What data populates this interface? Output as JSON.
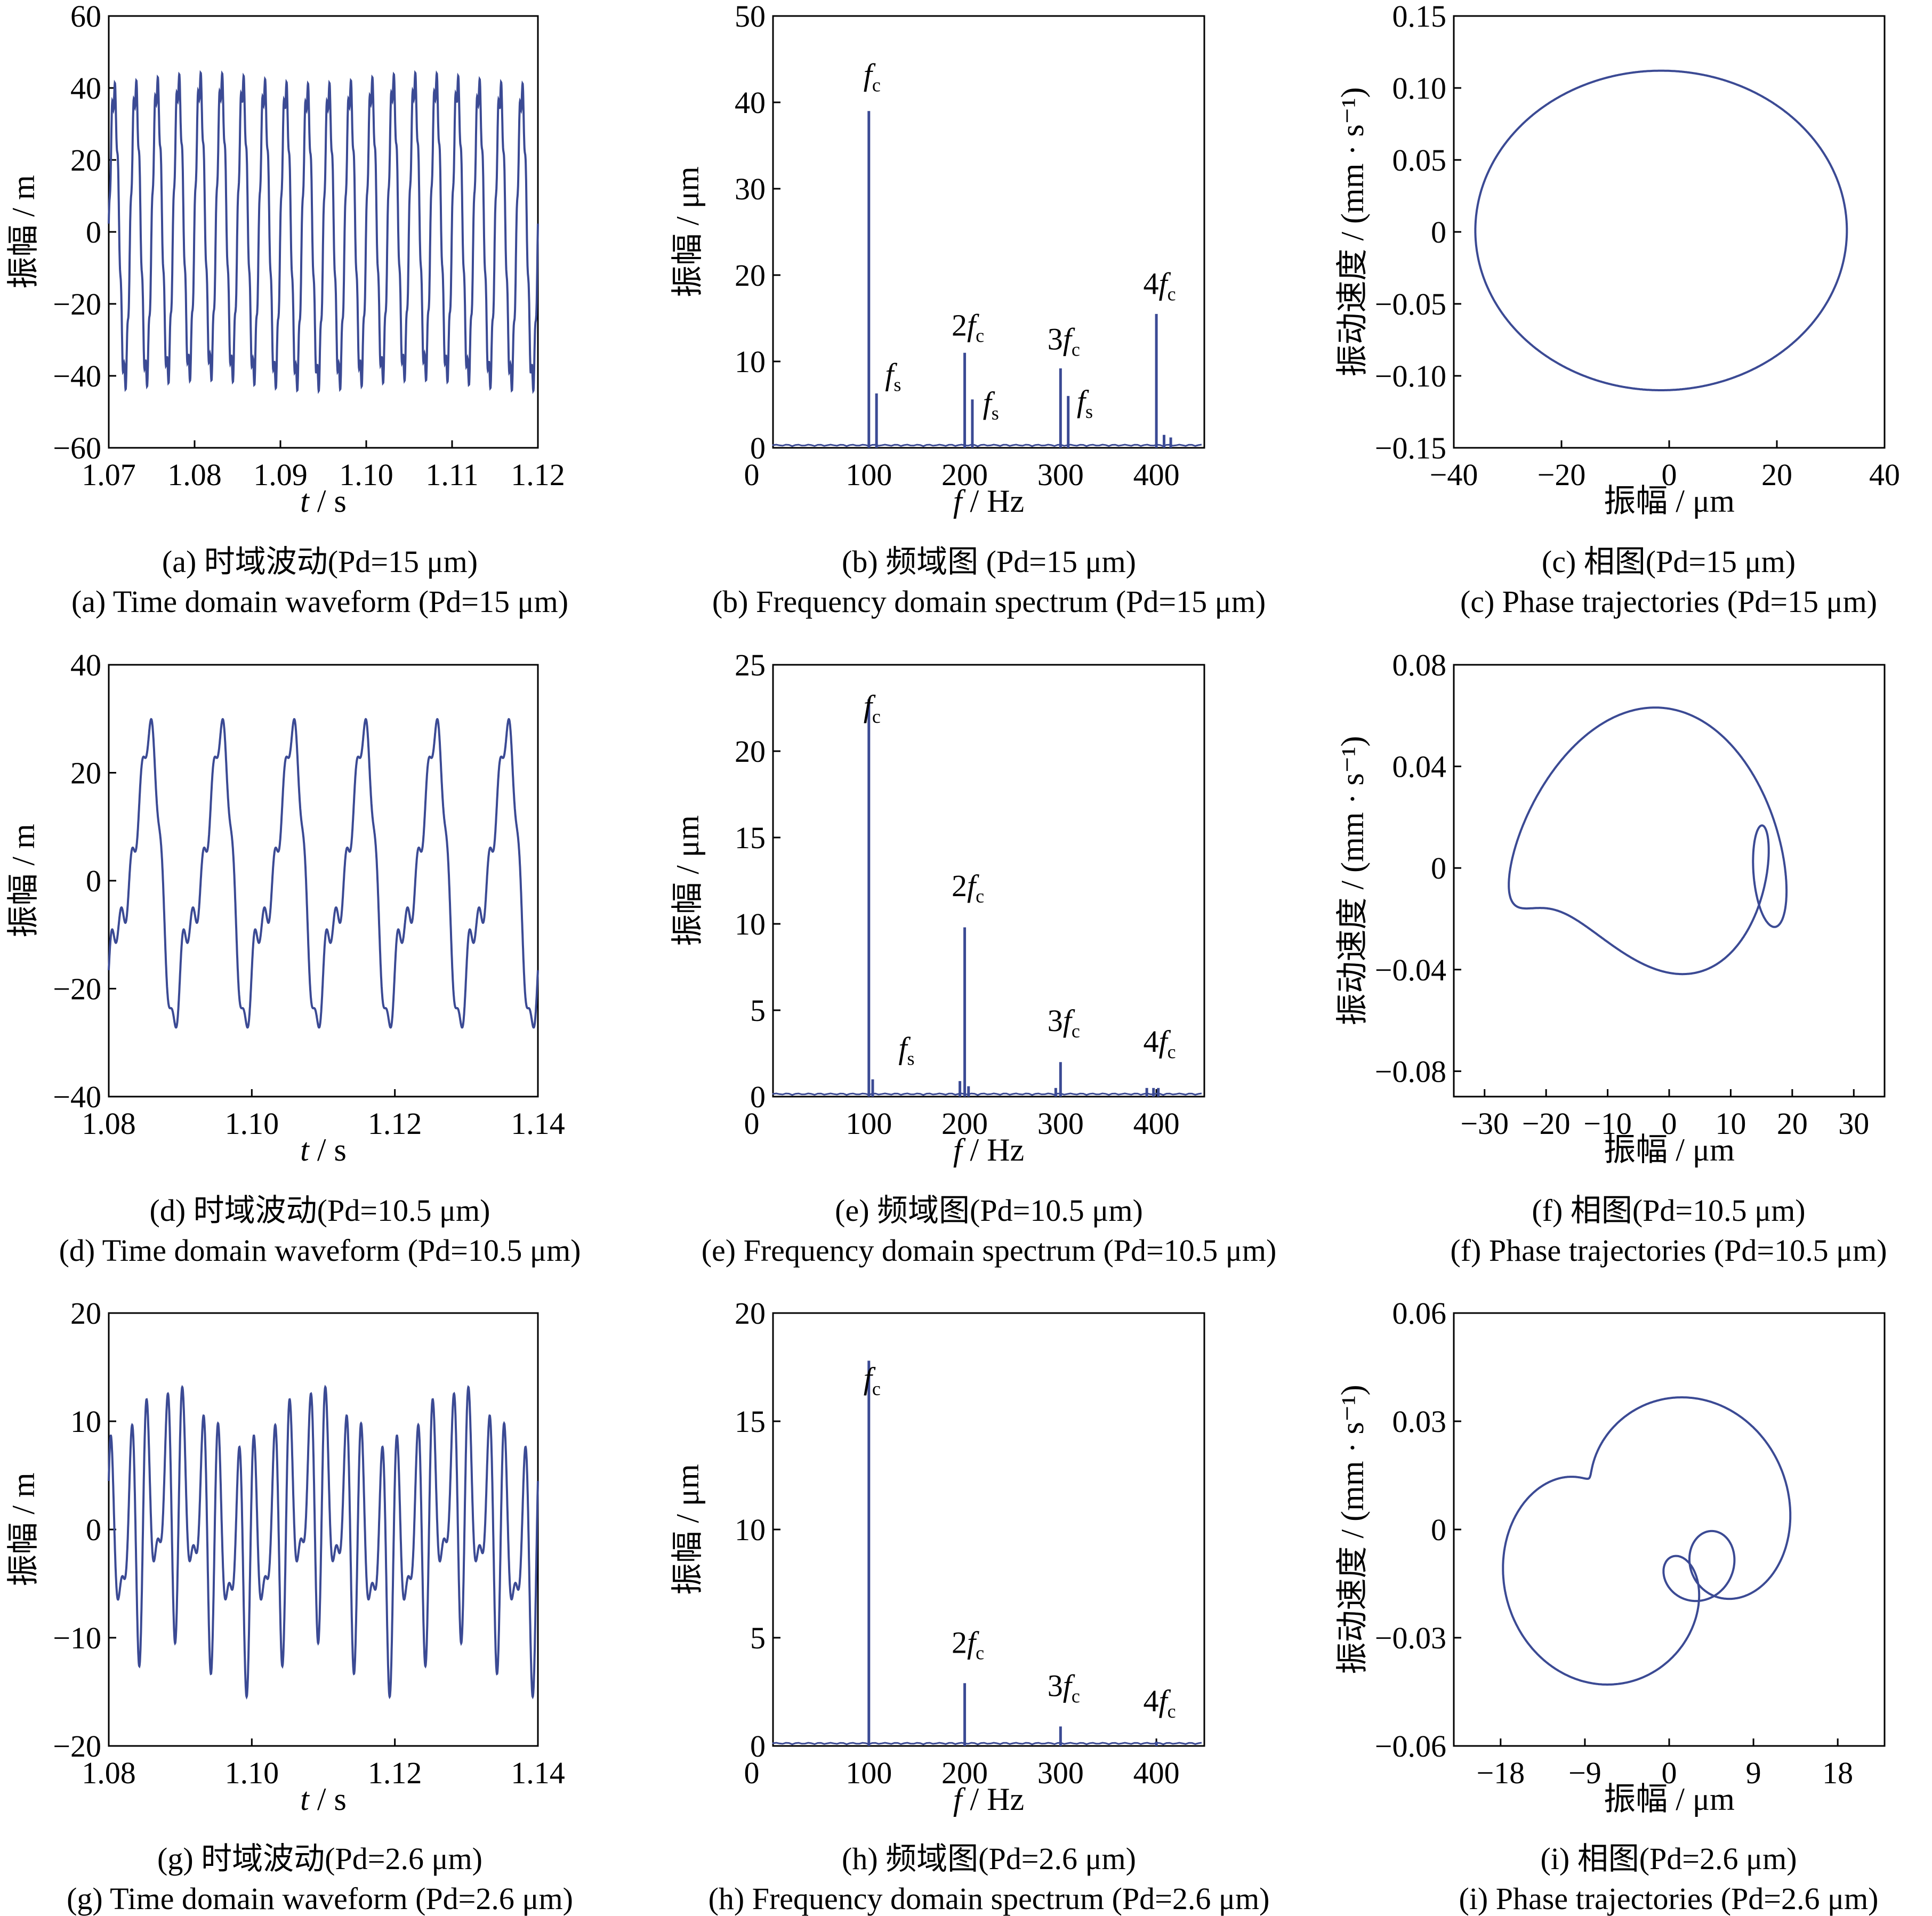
{
  "style": {
    "line_color": "#3b4a94"
  },
  "chart_data": [
    {
      "id": "a",
      "type": "line",
      "xlabel": "t / s",
      "ylabel": "振幅 / m",
      "xlim": [
        1.07,
        1.12
      ],
      "ylim": [
        -60,
        60
      ],
      "xticks": [
        "1.07",
        "1.08",
        "1.09",
        "1.10",
        "1.11",
        "1.12"
      ],
      "yticks": [
        "−60",
        "−40",
        "−20",
        "0",
        "20",
        "40",
        "60"
      ],
      "waveform": {
        "components": [
          {
            "freq": 400,
            "amp": 40,
            "phase": 0
          },
          {
            "freq": 2800,
            "amp": 4,
            "phase": 1.2
          }
        ],
        "drift": 1.5
      },
      "caption_cn": "(a)  时域波动(Pd=15 μm)",
      "caption_en": "(a)  Time domain waveform (Pd=15 μm)"
    },
    {
      "id": "b",
      "type": "bar",
      "xlabel": "f / Hz",
      "ylabel": "振幅 / μm",
      "xlim": [
        0,
        450
      ],
      "ylim": [
        0,
        50
      ],
      "xticks": [
        "100",
        "200",
        "300",
        "400"
      ],
      "yticks": [
        "0",
        "10",
        "20",
        "30",
        "40",
        "50"
      ],
      "peaks": [
        {
          "x": 100,
          "y": 39
        },
        {
          "x": 108,
          "y": 6.3
        },
        {
          "x": 200,
          "y": 11
        },
        {
          "x": 208,
          "y": 5.6
        },
        {
          "x": 300,
          "y": 9.2
        },
        {
          "x": 308,
          "y": 6
        },
        {
          "x": 400,
          "y": 15.5
        },
        {
          "x": 408,
          "y": 1.5
        },
        {
          "x": 415,
          "y": 1.2
        }
      ],
      "labels": [
        {
          "text": "f",
          "sub": "c",
          "x": 100,
          "y": 42
        },
        {
          "text": "f",
          "sub": "s",
          "x": 122,
          "y": 7.3
        },
        {
          "text": "2f",
          "sub": "c",
          "x": 200,
          "y": 13
        },
        {
          "text": "f",
          "sub": "s",
          "x": 224,
          "y": 4
        },
        {
          "text": "3f",
          "sub": "c",
          "x": 300,
          "y": 11.4
        },
        {
          "text": "f",
          "sub": "s",
          "x": 322,
          "y": 4.2
        },
        {
          "text": "4f",
          "sub": "c",
          "x": 400,
          "y": 17.8
        }
      ],
      "caption_cn": "(b)  频域图 (Pd=15 μm)",
      "caption_en": "(b)  Frequency domain spectrum (Pd=15 μm)"
    },
    {
      "id": "c",
      "type": "line",
      "xlabel": "振幅 / μm",
      "ylabel": "振动速度 / (mm · s⁻¹)",
      "xlim": [
        -40,
        40
      ],
      "ylim": [
        -0.15,
        0.15
      ],
      "xticks": [
        "−40",
        "−20",
        "0",
        "20",
        "40"
      ],
      "yticks": [
        "−0.15",
        "−0.10",
        "−0.05",
        "0",
        "0.05",
        "0.10",
        "0.15"
      ],
      "phase": {
        "cx": -1.5,
        "cy": 0.001,
        "rx": 34.5,
        "ry": 0.111,
        "components": [
          {
            "freq": 1,
            "ax": 1,
            "ay": 1
          }
        ]
      },
      "caption_cn": "(c)  相图(Pd=15 μm)",
      "caption_en": "(c)  Phase trajectories (Pd=15 μm)"
    },
    {
      "id": "d",
      "type": "line",
      "xlabel": "t / s",
      "ylabel": "振幅 / m",
      "xlim": [
        1.08,
        1.14
      ],
      "ylim": [
        -40,
        40
      ],
      "xticks": [
        "1.08",
        "1.10",
        "1.12",
        "1.14"
      ],
      "yticks": [
        "−40",
        "−20",
        "0",
        "20",
        "40"
      ],
      "waveform": {
        "components": [
          {
            "freq": 100,
            "amp": 22,
            "phase": -1.6
          },
          {
            "freq": 200,
            "amp": 9,
            "phase": 0.3
          },
          {
            "freq": 300,
            "amp": 2,
            "phase": 1.0
          },
          {
            "freq": 400,
            "amp": 1,
            "phase": 0.5
          },
          {
            "freq": 700,
            "amp": 3,
            "phase": 0.2
          }
        ],
        "drift": 0
      },
      "caption_cn": "(d)  时域波动(Pd=10.5 μm)",
      "caption_en": "(d)  Time domain waveform (Pd=10.5 μm)"
    },
    {
      "id": "e",
      "type": "bar",
      "xlabel": "f / Hz",
      "ylabel": "振幅 / μm",
      "xlim": [
        0,
        450
      ],
      "ylim": [
        0,
        25
      ],
      "xticks": [
        "100",
        "200",
        "300",
        "400"
      ],
      "yticks": [
        "0",
        "5",
        "10",
        "15",
        "20",
        "25"
      ],
      "peaks": [
        {
          "x": 100,
          "y": 23
        },
        {
          "x": 104,
          "y": 1.0
        },
        {
          "x": 195,
          "y": 0.9
        },
        {
          "x": 200,
          "y": 9.8
        },
        {
          "x": 204,
          "y": 0.6
        },
        {
          "x": 295,
          "y": 0.5
        },
        {
          "x": 300,
          "y": 2.0
        },
        {
          "x": 390,
          "y": 0.5
        },
        {
          "x": 397,
          "y": 0.5
        },
        {
          "x": 402,
          "y": 0.5
        }
      ],
      "labels": [
        {
          "text": "f",
          "sub": "c",
          "x": 100,
          "y": 22
        },
        {
          "text": "f",
          "sub": "s",
          "x": 136,
          "y": 2.2
        },
        {
          "text": "2f",
          "sub": "c",
          "x": 200,
          "y": 11.6
        },
        {
          "text": "3f",
          "sub": "c",
          "x": 300,
          "y": 3.8
        },
        {
          "text": "4f",
          "sub": "c",
          "x": 400,
          "y": 2.6
        }
      ],
      "caption_cn": "(e)  频域图(Pd=10.5 μm)",
      "caption_en": "(e)  Frequency domain spectrum (Pd=10.5 μm)"
    },
    {
      "id": "f",
      "type": "line",
      "xlabel": "振幅 / μm",
      "ylabel": "振动速度 / (mm · s⁻¹)",
      "xlim": [
        -35,
        35
      ],
      "ylim": [
        -0.09,
        0.08
      ],
      "xticks": [
        "−30",
        "−20",
        "−10",
        "0",
        "10",
        "20",
        "30"
      ],
      "yticks": [
        "−0.08",
        "−0.04",
        "0",
        "0.04",
        "0.08"
      ],
      "phase": {
        "cx": 0,
        "cy": 0,
        "rx": 1,
        "ry": 1,
        "components": [
          {
            "freq": 1,
            "ax": 22,
            "ay": 0.03,
            "px": 0
          },
          {
            "freq": 2,
            "ax": 6,
            "ay": 0.02,
            "px": 1.2
          },
          {
            "freq": 3,
            "ax": 3,
            "ay": 0.02,
            "px": 0.4
          }
        ]
      },
      "caption_cn": "(f)  相图(Pd=10.5 μm)",
      "caption_en": "(f)  Phase trajectories (Pd=10.5 μm)"
    },
    {
      "id": "g",
      "type": "line",
      "xlabel": "t / s",
      "ylabel": "振幅 / m",
      "xlim": [
        1.08,
        1.14
      ],
      "ylim": [
        -20,
        20
      ],
      "xticks": [
        "1.08",
        "1.10",
        "1.12",
        "1.14"
      ],
      "yticks": [
        "−20",
        "−10",
        "0",
        "10",
        "20"
      ],
      "waveform": {
        "components": [
          {
            "freq": 400,
            "amp": 8,
            "phase": 0.3
          },
          {
            "freq": 600,
            "amp": 5,
            "phase": 1.1
          },
          {
            "freq": 50,
            "amp": 2.5,
            "phase": -1.2
          }
        ],
        "drift": 0
      },
      "caption_cn": "(g)  时域波动(Pd=2.6 μm)",
      "caption_en": "(g)  Time domain waveform (Pd=2.6 μm)"
    },
    {
      "id": "h",
      "type": "bar",
      "xlabel": "f / Hz",
      "ylabel": "振幅 / μm",
      "xlim": [
        0,
        450
      ],
      "ylim": [
        0,
        20
      ],
      "xticks": [
        "100",
        "200",
        "300",
        "400"
      ],
      "yticks": [
        "0",
        "5",
        "10",
        "15",
        "20"
      ],
      "peaks": [
        {
          "x": 100,
          "y": 17.8
        },
        {
          "x": 200,
          "y": 2.9
        },
        {
          "x": 300,
          "y": 0.9
        },
        {
          "x": 400,
          "y": 0.2
        }
      ],
      "labels": [
        {
          "text": "f",
          "sub": "c",
          "x": 100,
          "y": 16.5
        },
        {
          "text": "2f",
          "sub": "c",
          "x": 200,
          "y": 4.3
        },
        {
          "text": "3f",
          "sub": "c",
          "x": 300,
          "y": 2.3
        },
        {
          "text": "4f",
          "sub": "c",
          "x": 400,
          "y": 1.6
        }
      ],
      "caption_cn": "(h)  频域图(Pd=2.6 μm)",
      "caption_en": "(h)  Frequency domain spectrum (Pd=2.6 μm)"
    },
    {
      "id": "i",
      "type": "line",
      "xlabel": "振幅 / μm",
      "ylabel": "振动速度 / (mm · s⁻¹)",
      "xlim": [
        -23,
        23
      ],
      "ylim": [
        -0.06,
        0.06
      ],
      "xticks": [
        "−18",
        "−9",
        "0",
        "9",
        "18"
      ],
      "yticks": [
        "−0.06",
        "−0.03",
        "0",
        "0.03",
        "0.06"
      ],
      "phase": {
        "cx": -1,
        "cy": -0.004,
        "rx": 1,
        "ry": 1,
        "components": [
          {
            "freq": 1,
            "ax": 10,
            "ay": 0.022,
            "px": 0.4
          },
          {
            "freq": 2,
            "ax": 5,
            "ay": 0.015,
            "px": 1.7
          },
          {
            "freq": 4,
            "ax": 4,
            "ay": 0.012,
            "px": 0.9
          }
        ]
      },
      "caption_cn": "(i)  相图(Pd=2.6 μm)",
      "caption_en": "(i)  Phase trajectories (Pd=2.6 μm)"
    }
  ]
}
